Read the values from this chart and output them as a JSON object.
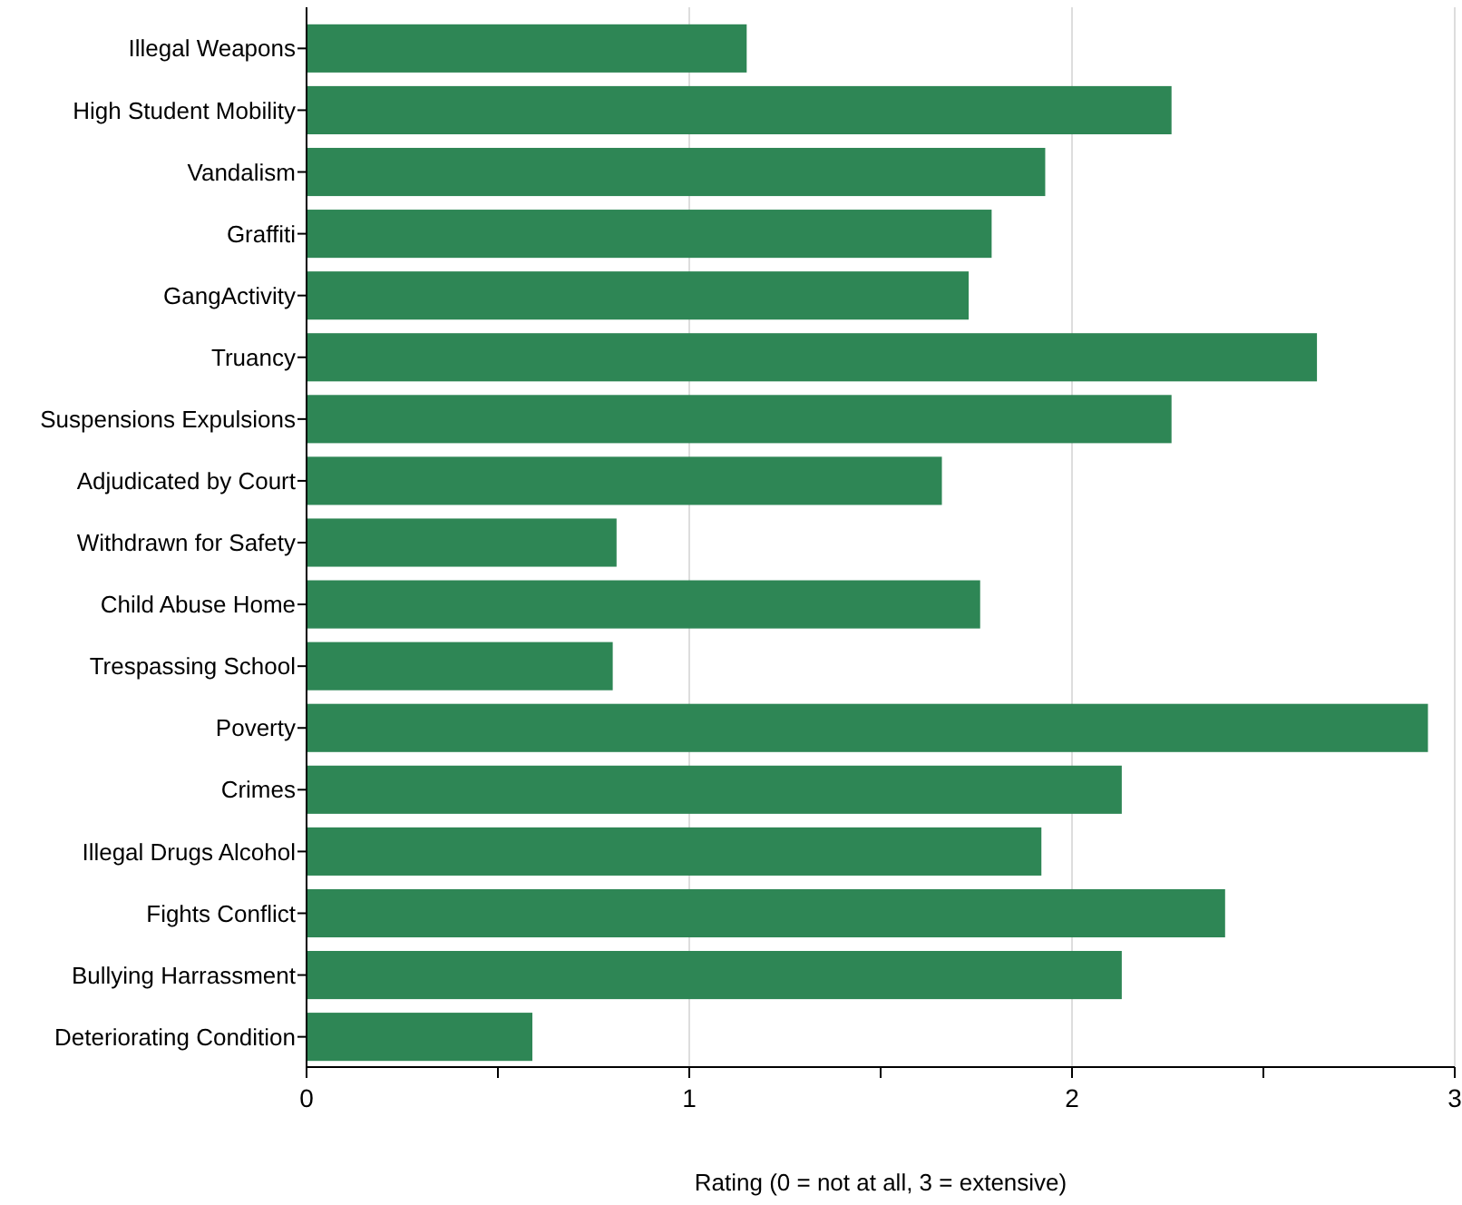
{
  "chart_data": {
    "type": "bar",
    "orientation": "horizontal",
    "categories": [
      "Illegal Weapons",
      "High Student Mobility",
      "Vandalism",
      "Graffiti",
      "GangActivity",
      "Truancy",
      "Suspensions Expulsions",
      "Adjudicated by Court",
      "Withdrawn for Safety",
      "Child Abuse Home",
      "Trespassing School",
      "Poverty",
      "Crimes",
      "Illegal Drugs Alcohol",
      "Fights Conflict",
      "Bullying Harrassment",
      "Deteriorating Condition"
    ],
    "values": [
      1.15,
      2.26,
      1.93,
      1.79,
      1.73,
      2.64,
      2.26,
      1.66,
      0.81,
      1.76,
      0.8,
      2.93,
      2.13,
      1.92,
      2.4,
      2.13,
      0.59
    ],
    "color": "#2e8655",
    "xlim": [
      0,
      3
    ],
    "xticks": [
      0,
      {
        "value": 0.5,
        "label": null
      },
      1,
      {
        "value": 1.5,
        "label": null
      },
      2,
      {
        "value": 2.5,
        "label": null
      },
      3
    ],
    "xlabel": "Rating (0 = not at all, 3 = extensive)",
    "grid": "x"
  }
}
